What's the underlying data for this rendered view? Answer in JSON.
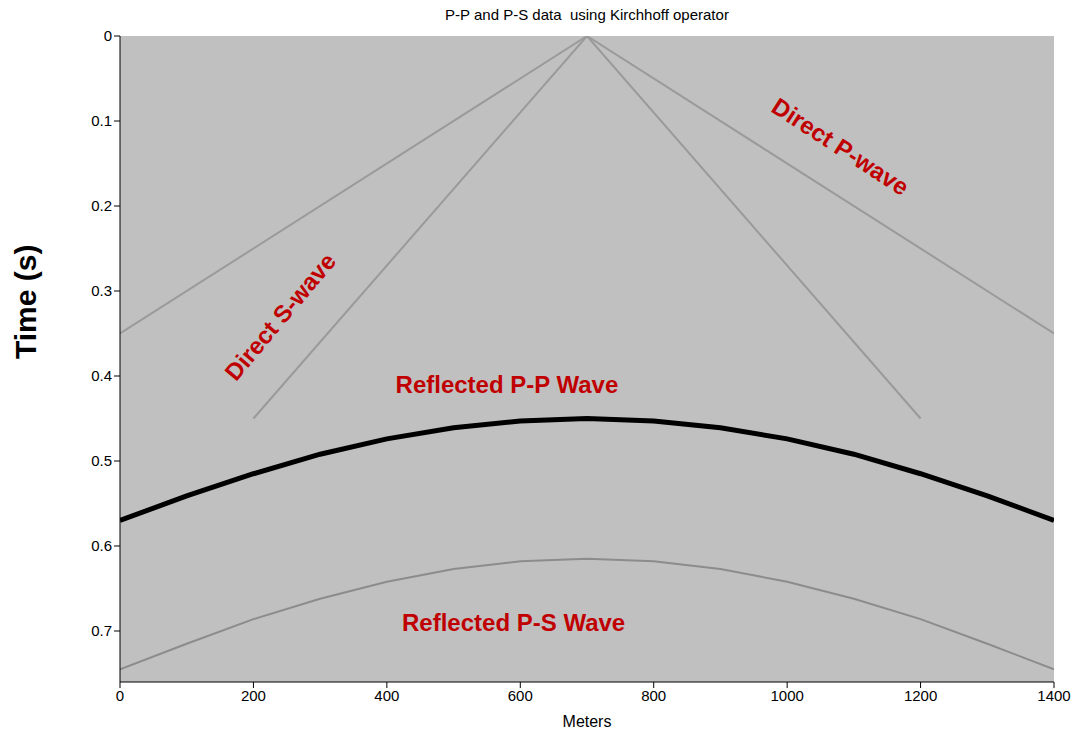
{
  "chart_data": {
    "type": "line",
    "title": "P-P and P-S data  using Kirchhoff operator",
    "x_label": "Meters",
    "y_label": "Time (s)",
    "xlim": [
      0,
      1400
    ],
    "xticks": [
      0,
      200,
      400,
      600,
      800,
      1000,
      1200,
      1400
    ],
    "ylim": [
      0,
      0.76
    ],
    "yticks": [
      0,
      0.1,
      0.2,
      0.3,
      0.4,
      0.5,
      0.6,
      0.7
    ],
    "grid": false,
    "series": [
      {
        "name": "Direct P-wave",
        "color": "#9a9a9a",
        "line_style": "solid",
        "x": [
          0,
          700,
          1400
        ],
        "values": [
          0.35,
          0,
          0.35
        ],
        "label_x": 1080,
        "label_y": 0.13
      },
      {
        "name": "Direct S-wave",
        "color": "#9a9a9a",
        "line_style": "solid",
        "x": [
          200,
          700,
          1200
        ],
        "values": [
          0.45,
          0,
          0.45
        ],
        "label_x": 240,
        "label_y": 0.33
      },
      {
        "name": "Reflected P-P Wave",
        "color": "#000000",
        "line_style": "solid",
        "x": [
          0,
          100,
          200,
          300,
          400,
          500,
          600,
          700,
          800,
          900,
          1000,
          1100,
          1200,
          1300,
          1400
        ],
        "values": [
          0.57,
          0.541,
          0.515,
          0.492,
          0.474,
          0.461,
          0.453,
          0.45,
          0.453,
          0.461,
          0.474,
          0.492,
          0.515,
          0.541,
          0.57
        ],
        "label_x": 580,
        "label_y": 0.41
      },
      {
        "name": "Reflected P-S Wave",
        "color": "#8c8c8c",
        "line_style": "solid",
        "x": [
          0,
          100,
          200,
          300,
          400,
          500,
          600,
          700,
          800,
          900,
          1000,
          1100,
          1200,
          1300,
          1400
        ],
        "values": [
          0.745,
          0.715,
          0.686,
          0.662,
          0.642,
          0.627,
          0.618,
          0.615,
          0.618,
          0.627,
          0.642,
          0.662,
          0.686,
          0.715,
          0.745
        ],
        "label_x": 590,
        "label_y": 0.69
      }
    ]
  }
}
